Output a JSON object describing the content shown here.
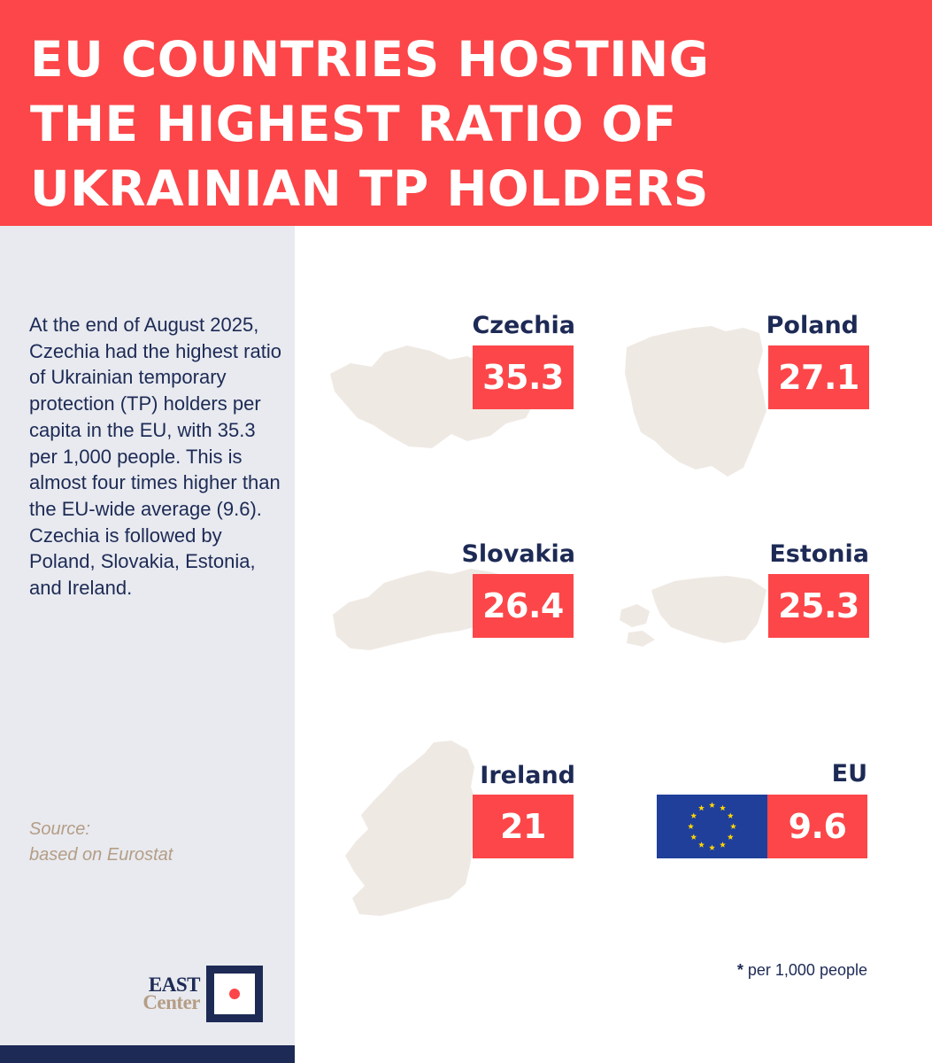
{
  "header": {
    "title": "EU COUNTRIES HOSTING\nTHE HIGHEST RATIO OF\nUKRAINIAN TP HOLDERS"
  },
  "sidebar": {
    "summary": "At the end of August 2025, Czechia had the highest ratio of Ukrainian temporary protection (TP) holders per capita in the EU, with 35.3 per 1,000 people. This is almost four times higher than the EU-wide average (9.6). Czechia is followed by Poland, Slovakia, Estonia, and Ireland.",
    "source_label": "Source:",
    "source_text": "based on Eurostat"
  },
  "logo": {
    "line1": "EAST",
    "line2": "Center"
  },
  "countries": [
    {
      "name": "Czechia",
      "value": "35.3"
    },
    {
      "name": "Poland",
      "value": "27.1"
    },
    {
      "name": "Slovakia",
      "value": "26.4"
    },
    {
      "name": "Estonia",
      "value": "25.3"
    },
    {
      "name": "Ireland",
      "value": "21"
    },
    {
      "name": "EU",
      "value": "9.6"
    }
  ],
  "footnote": {
    "star": "*",
    "text": " per 1,000 people"
  },
  "colors": {
    "accent_red": "#fc4649",
    "navy": "#1d2a55",
    "panel_gray": "#e8eaef",
    "source_tan": "#b59d86",
    "map_fill": "#efe9e4",
    "eu_blue": "#1f3f9a",
    "eu_star": "#ffd500"
  }
}
